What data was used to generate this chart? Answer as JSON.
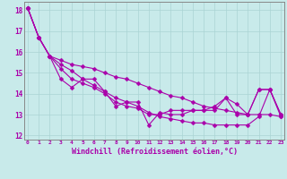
{
  "xlabel": "Windchill (Refroidissement éolien,°C)",
  "background_color": "#c8eaea",
  "grid_color": "#aad4d4",
  "line_color": "#aa00aa",
  "x_ticks": [
    0,
    1,
    2,
    3,
    4,
    5,
    6,
    7,
    8,
    9,
    10,
    11,
    12,
    13,
    14,
    15,
    16,
    17,
    18,
    19,
    20,
    21,
    22,
    23
  ],
  "ylim": [
    11.8,
    18.4
  ],
  "xlim": [
    -0.3,
    23.3
  ],
  "yticks": [
    12,
    13,
    14,
    15,
    16,
    17,
    18
  ],
  "line1_x": [
    0,
    1,
    2,
    3,
    4,
    5,
    6,
    7,
    8,
    9,
    10,
    11,
    12,
    13,
    14,
    15,
    16,
    17,
    18,
    19,
    20,
    21,
    22,
    23
  ],
  "line1_y": [
    18.1,
    16.7,
    15.8,
    14.7,
    14.3,
    14.7,
    14.7,
    14.1,
    13.4,
    13.6,
    13.6,
    12.5,
    13.1,
    13.0,
    13.0,
    13.2,
    13.2,
    13.2,
    13.8,
    13.0,
    13.0,
    14.2,
    14.2,
    13.0
  ],
  "line2_x": [
    0,
    1,
    2,
    3,
    4,
    5,
    6,
    7,
    8,
    9,
    10,
    11,
    12,
    13,
    14,
    15,
    16,
    17,
    18,
    19,
    20,
    21,
    22,
    23
  ],
  "line2_y": [
    18.1,
    16.7,
    15.8,
    15.6,
    15.4,
    15.3,
    15.2,
    15.0,
    14.8,
    14.7,
    14.5,
    14.3,
    14.1,
    13.9,
    13.8,
    13.6,
    13.4,
    13.3,
    13.2,
    13.1,
    13.0,
    13.0,
    13.0,
    12.9
  ],
  "line3_x": [
    0,
    1,
    2,
    3,
    4,
    5,
    6,
    7,
    8,
    9,
    10,
    11,
    12,
    13,
    14,
    15,
    16,
    17,
    18,
    19,
    20,
    21,
    22,
    23
  ],
  "line3_y": [
    18.1,
    16.7,
    15.8,
    15.4,
    15.1,
    14.7,
    14.4,
    14.1,
    13.8,
    13.6,
    13.4,
    13.1,
    12.9,
    12.8,
    12.7,
    12.6,
    12.6,
    12.5,
    12.5,
    12.5,
    12.5,
    12.9,
    14.2,
    13.0
  ],
  "line4_x": [
    0,
    1,
    2,
    3,
    4,
    5,
    6,
    7,
    8,
    9,
    10,
    11,
    12,
    13,
    14,
    15,
    16,
    17,
    18,
    19,
    20,
    21,
    22,
    23
  ],
  "line4_y": [
    18.1,
    16.7,
    15.8,
    15.2,
    14.7,
    14.5,
    14.3,
    14.0,
    13.6,
    13.4,
    13.3,
    13.0,
    13.0,
    13.2,
    13.2,
    13.2,
    13.2,
    13.4,
    13.8,
    13.5,
    13.0,
    14.2,
    14.2,
    12.9
  ]
}
